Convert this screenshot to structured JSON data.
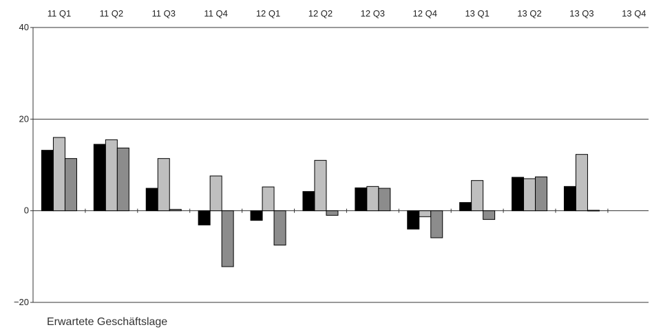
{
  "chart_data": {
    "type": "bar",
    "categories": [
      "11 Q1",
      "11 Q2",
      "11 Q3",
      "11 Q4",
      "12 Q1",
      "12 Q2",
      "12 Q3",
      "12 Q4",
      "13 Q1",
      "13 Q2",
      "13 Q3",
      "13 Q4"
    ],
    "series": [
      {
        "color": "#000000",
        "values": [
          13.2,
          14.5,
          4.9,
          -3.1,
          -2.1,
          4.2,
          5.0,
          -4.0,
          1.8,
          7.3,
          5.3,
          null
        ]
      },
      {
        "color": "#bfbfbf",
        "values": [
          16.0,
          15.5,
          11.4,
          7.6,
          5.2,
          11.0,
          5.3,
          -1.3,
          6.6,
          7.0,
          12.3,
          null
        ]
      },
      {
        "color": "#8c8c8c",
        "values": [
          11.4,
          13.7,
          0.3,
          -12.2,
          -7.5,
          -1.0,
          4.9,
          -5.9,
          -1.9,
          7.4,
          0.1,
          null
        ]
      }
    ],
    "title": "",
    "caption": "Erwartete Geschäftslage",
    "xlabel": "",
    "ylabel": "",
    "ylim": [
      -20,
      40
    ],
    "yticks": [
      "40",
      "20",
      "0",
      "−20"
    ],
    "ytick_values": [
      40,
      20,
      0,
      -20
    ],
    "grid": true,
    "category_labels_position": "top"
  }
}
